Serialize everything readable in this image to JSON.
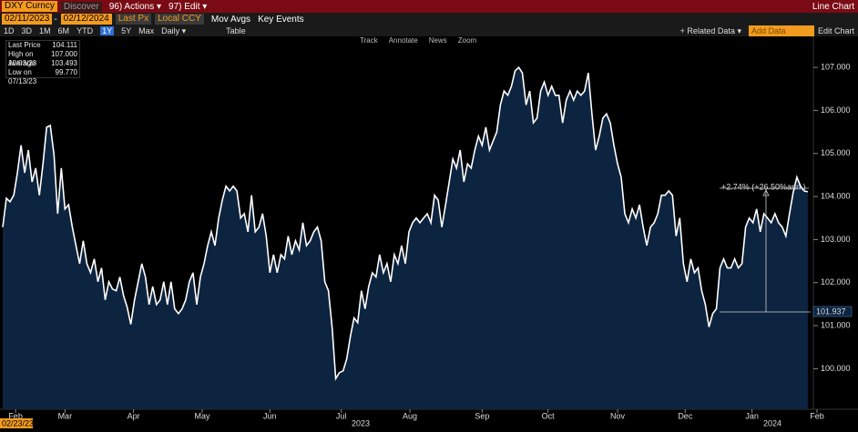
{
  "toolbar": {
    "ticker": "DXY Curncy",
    "discover": "Discover",
    "actions": "96) Actions ▾",
    "edit": "97) Edit ▾",
    "view": "Line Chart",
    "start_date": "02/11/2023",
    "end_date": "02/12/2024",
    "field": "Last Px",
    "currency": "Local CCY",
    "mov_avgs": "Mov Avgs",
    "key_events": "Key Events",
    "periods": [
      "1D",
      "3D",
      "1M",
      "6M",
      "YTD",
      "1Y",
      "5Y",
      "Max"
    ],
    "frequency": "Daily ▾",
    "table": "Table",
    "related": "+ Related Data ▾",
    "add_data": "Add Data",
    "edit_chart": "Edit Chart",
    "tools": [
      "Track",
      "Annotate",
      "News",
      "Zoom"
    ]
  },
  "legend": [
    {
      "label": "Last Price",
      "value": "104.111"
    },
    {
      "label": "High on 10/03/23",
      "value": "107.000"
    },
    {
      "label": "Average",
      "value": "103.493"
    },
    {
      "label": "Low on 07/13/23",
      "value": "99.770"
    }
  ],
  "chart_data": {
    "type": "line",
    "color": "#ffffff",
    "fill": "#0d2440",
    "values": [
      103.29,
      103.96,
      103.88,
      104.03,
      104.55,
      105.19,
      104.55,
      105.08,
      104.34,
      104.66,
      104.03,
      104.76,
      105.61,
      105.65,
      104.97,
      103.6,
      104.66,
      103.71,
      103.81,
      103.29,
      102.86,
      102.44,
      102.97,
      102.44,
      102.23,
      102.55,
      102.02,
      102.34,
      101.6,
      102.02,
      101.85,
      101.81,
      102.13,
      101.7,
      101.43,
      101.03,
      101.6,
      102.02,
      102.44,
      102.13,
      101.49,
      101.91,
      101.49,
      101.6,
      102.02,
      101.49,
      102.02,
      101.39,
      101.28,
      101.39,
      101.6,
      102.02,
      102.23,
      101.49,
      102.13,
      102.44,
      102.86,
      103.18,
      102.86,
      103.5,
      103.92,
      104.24,
      104.13,
      104.24,
      104.13,
      103.5,
      103.6,
      103.18,
      104.03,
      103.18,
      103.29,
      103.6,
      103.08,
      102.23,
      102.65,
      102.23,
      102.65,
      102.55,
      103.08,
      102.65,
      102.97,
      102.76,
      103.39,
      102.86,
      102.97,
      103.18,
      103.29,
      102.97,
      102.02,
      101.81,
      100.97,
      99.77,
      99.91,
      99.95,
      100.23,
      100.75,
      101.18,
      101.07,
      101.81,
      101.39,
      101.91,
      102.23,
      102.13,
      102.65,
      102.23,
      102.44,
      102.02,
      102.65,
      102.44,
      102.86,
      102.44,
      103.18,
      103.39,
      103.5,
      103.39,
      103.5,
      103.6,
      103.39,
      104.03,
      103.92,
      103.29,
      103.81,
      104.34,
      104.87,
      104.66,
      105.08,
      104.34,
      104.76,
      104.66,
      105.08,
      105.4,
      105.19,
      105.61,
      105.08,
      105.29,
      105.5,
      106.13,
      106.45,
      106.35,
      106.56,
      106.92,
      107.0,
      106.87,
      106.13,
      106.45,
      105.71,
      105.82,
      106.45,
      106.66,
      106.35,
      106.56,
      106.35,
      106.35,
      105.71,
      106.24,
      106.45,
      106.24,
      106.45,
      106.35,
      106.45,
      106.87,
      105.92,
      105.08,
      105.4,
      105.82,
      105.92,
      105.71,
      105.19,
      104.76,
      104.45,
      103.6,
      103.39,
      103.71,
      103.5,
      103.81,
      103.29,
      102.86,
      103.29,
      103.39,
      103.6,
      104.03,
      104.03,
      104.13,
      104.03,
      103.08,
      103.5,
      102.44,
      102.02,
      102.55,
      102.23,
      102.34,
      101.81,
      101.49,
      100.97,
      101.28,
      101.39,
      102.34,
      102.55,
      102.34,
      102.34,
      102.55,
      102.34,
      102.44,
      103.29,
      103.5,
      103.39,
      103.71,
      103.18,
      103.6,
      103.5,
      103.39,
      103.6,
      103.39,
      103.29,
      103.08,
      103.6,
      104.09,
      104.45,
      104.24,
      104.13,
      104.11
    ],
    "xlim": [
      -0.75,
      224.5
    ],
    "xticks": [
      {
        "value": 3.5,
        "label": "Feb"
      },
      {
        "value": 17,
        "label": "Mar"
      },
      {
        "value": 35.75,
        "label": "Apr"
      },
      {
        "value": 54.5,
        "label": "May"
      },
      {
        "value": 73,
        "label": "Jun"
      },
      {
        "value": 92.5,
        "label": "Jul"
      },
      {
        "value": 111.25,
        "label": "Aug"
      },
      {
        "value": 131,
        "label": "Sep"
      },
      {
        "value": 149,
        "label": "Oct"
      },
      {
        "value": 168,
        "label": "Nov"
      },
      {
        "value": 186.5,
        "label": "Dec"
      },
      {
        "value": 204.75,
        "label": "Jan"
      },
      {
        "value": 222.5,
        "label": "Feb"
      }
    ],
    "years": [
      "2023",
      "2024"
    ],
    "cursor_date": "02/23/23",
    "ylim": [
      99.1,
      107.72
    ],
    "yticks": [
      {
        "value": 100,
        "label": "100.000"
      },
      {
        "value": 101,
        "label": "101.000"
      },
      {
        "value": 102,
        "label": "102.000"
      },
      {
        "value": 103,
        "label": "103.000"
      },
      {
        "value": 104,
        "label": "104.000"
      },
      {
        "value": 105,
        "label": "105.000"
      },
      {
        "value": 106,
        "label": "106.000"
      },
      {
        "value": 107,
        "label": "107.000"
      }
    ],
    "grid": false,
    "annotations": [
      "+2.74% (+26.50%ann.)",
      "101.937"
    ]
  }
}
